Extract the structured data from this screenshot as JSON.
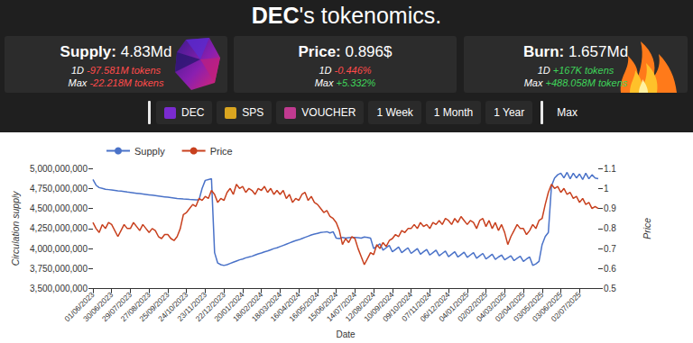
{
  "header": {
    "title_bold": "DEC",
    "title_rest": "'s tokenomics."
  },
  "cards": [
    {
      "label": "Supply:",
      "value": "4.83Md",
      "rows": [
        {
          "period": "1D",
          "change": "-97.581M",
          "unit": "tokens"
        },
        {
          "period": "Max",
          "change": "-22.218M",
          "unit": "tokens"
        }
      ]
    },
    {
      "label": "Price:",
      "value": "0.896$",
      "rows": [
        {
          "period": "1D",
          "change": "-0.446%"
        },
        {
          "period": "Max",
          "change": "+5.332%"
        }
      ]
    },
    {
      "label": "Burn:",
      "value": "1.657Md",
      "rows": [
        {
          "period": "1D",
          "change": "+167K",
          "unit": "tokens"
        },
        {
          "period": "Max",
          "change": "+488.058M",
          "unit": "tokens"
        }
      ]
    }
  ],
  "buttons": [
    "DEC",
    "SPS",
    "VOUCHER",
    "1 Week",
    "1 Month",
    "1 Year",
    "Max"
  ],
  "chart_data": {
    "type": "line",
    "x_label": "Date",
    "y_label": "Circulation supply",
    "y2_label": "Price",
    "legend": "top left",
    "grid": false,
    "categories": [
      "01/06/2023",
      null,
      null,
      null,
      null,
      null,
      "30/06/2023",
      null,
      null,
      null,
      null,
      null,
      "29/07/2023",
      null,
      null,
      null,
      null,
      null,
      "27/08/2023",
      null,
      null,
      null,
      null,
      null,
      "25/09/2023",
      null,
      null,
      null,
      null,
      null,
      "24/10/2023",
      null,
      null,
      null,
      null,
      null,
      "23/11/2023",
      null,
      null,
      null,
      null,
      null,
      "22/12/2023",
      null,
      null,
      null,
      null,
      null,
      "20/01/2024",
      null,
      null,
      null,
      null,
      null,
      "18/02/2024",
      null,
      null,
      null,
      null,
      null,
      "18/03/2024",
      null,
      null,
      null,
      null,
      null,
      "16/04/2024",
      null,
      null,
      null,
      null,
      null,
      "16/05/2024",
      null,
      null,
      null,
      null,
      null,
      "15/06/2024",
      null,
      null,
      null,
      null,
      null,
      "14/07/2024",
      null,
      null,
      null,
      null,
      null,
      "12/08/2024",
      null,
      null,
      null,
      null,
      null,
      "10/09/2024",
      null,
      null,
      null,
      null,
      null,
      "09/10/2024",
      null,
      null,
      null,
      null,
      null,
      "07/11/2024",
      null,
      null,
      null,
      null,
      null,
      "06/12/2024",
      null,
      null,
      null,
      null,
      null,
      "04/01/2025",
      null,
      null,
      null,
      null,
      null,
      "02/02/2025",
      null,
      null,
      null,
      null,
      null,
      "04/03/2025",
      null,
      null,
      null,
      null,
      null,
      "02/04/2025",
      null,
      null,
      null,
      null,
      null,
      "03/05/2025",
      null,
      null,
      null,
      null,
      null,
      "03/06/2025",
      null,
      null,
      null,
      null,
      null,
      "02/07/2025",
      null,
      null,
      null,
      null,
      null,
      null
    ],
    "series": [
      {
        "name": "Supply",
        "color": "#4a72c8",
        "values": [
          4860000000,
          4790000000,
          4760000000,
          4750000000,
          4740000000,
          4735000000,
          4730000000,
          4725000000,
          4720000000,
          4718000000,
          4712000000,
          4705000000,
          4700000000,
          4695000000,
          4690000000,
          4685000000,
          4680000000,
          4675000000,
          4670000000,
          4665000000,
          4660000000,
          4655000000,
          4650000000,
          4645000000,
          4640000000,
          4635000000,
          4630000000,
          4625000000,
          4622000000,
          4618000000,
          4615000000,
          4612000000,
          4610000000,
          4608000000,
          4606000000,
          4750000000,
          4850000000,
          4860000000,
          4870000000,
          3950000000,
          3820000000,
          3800000000,
          3790000000,
          3800000000,
          3815000000,
          3830000000,
          3845000000,
          3860000000,
          3870000000,
          3885000000,
          3895000000,
          3905000000,
          3920000000,
          3935000000,
          3945000000,
          3960000000,
          3970000000,
          3985000000,
          4000000000,
          4010000000,
          4025000000,
          4040000000,
          4055000000,
          4070000000,
          4085000000,
          4100000000,
          4110000000,
          4125000000,
          4140000000,
          4155000000,
          4170000000,
          4180000000,
          4190000000,
          4200000000,
          4205000000,
          4210000000,
          4195000000,
          4210000000,
          4130000000,
          4125000000,
          4140000000,
          4130000000,
          4135000000,
          4140000000,
          4140000000,
          4135000000,
          4130000000,
          4145000000,
          4140000000,
          4130000000,
          4000000000,
          4030000000,
          4060000000,
          3980000000,
          4010000000,
          4040000000,
          3960000000,
          3990000000,
          4020000000,
          3950000000,
          3980000000,
          4010000000,
          3940000000,
          3970000000,
          4000000000,
          3930000000,
          3960000000,
          3990000000,
          3920000000,
          3950000000,
          3980000000,
          3910000000,
          3940000000,
          3970000000,
          3900000000,
          3930000000,
          3960000000,
          3895000000,
          3925000000,
          3955000000,
          3890000000,
          3920000000,
          3950000000,
          3880000000,
          3910000000,
          3940000000,
          3870000000,
          3900000000,
          3930000000,
          3865000000,
          3895000000,
          3920000000,
          3860000000,
          3885000000,
          3910000000,
          3850000000,
          3880000000,
          3905000000,
          3840000000,
          3870000000,
          3895000000,
          3790000000,
          3810000000,
          3840000000,
          4050000000,
          4150000000,
          4200000000,
          4780000000,
          4880000000,
          4920000000,
          4940000000,
          4880000000,
          4950000000,
          4870000000,
          4940000000,
          4880000000,
          4930000000,
          4860000000,
          4940000000,
          4870000000,
          4920000000,
          4880000000,
          4870000000
        ]
      },
      {
        "name": "Price",
        "color": "#c8401e",
        "axis": "y2",
        "values": [
          0.83,
          0.8,
          0.78,
          0.82,
          0.8,
          0.83,
          0.82,
          0.79,
          0.76,
          0.79,
          0.82,
          0.8,
          0.8,
          0.83,
          0.81,
          0.79,
          0.82,
          0.8,
          0.78,
          0.8,
          0.79,
          0.76,
          0.75,
          0.77,
          0.77,
          0.75,
          0.74,
          0.76,
          0.8,
          0.87,
          0.88,
          0.9,
          0.92,
          0.91,
          0.95,
          0.94,
          0.96,
          0.95,
          0.99,
          0.97,
          0.93,
          0.95,
          0.94,
          0.98,
          1.0,
          0.97,
          1.02,
          1.0,
          1.01,
          0.98,
          1.0,
          0.99,
          0.97,
          1.0,
          0.99,
          1.01,
          0.98,
          1.0,
          0.97,
          0.99,
          0.97,
          0.99,
          0.95,
          0.97,
          0.93,
          0.95,
          0.94,
          0.97,
          0.98,
          0.94,
          0.96,
          0.93,
          0.92,
          0.9,
          0.88,
          0.89,
          0.86,
          0.85,
          0.83,
          0.79,
          0.72,
          0.75,
          0.73,
          0.76,
          0.75,
          0.7,
          0.66,
          0.62,
          0.65,
          0.68,
          0.67,
          0.72,
          0.7,
          0.73,
          0.71,
          0.74,
          0.75,
          0.77,
          0.76,
          0.79,
          0.78,
          0.8,
          0.8,
          0.82,
          0.8,
          0.83,
          0.81,
          0.82,
          0.8,
          0.83,
          0.82,
          0.84,
          0.82,
          0.85,
          0.84,
          0.82,
          0.85,
          0.83,
          0.86,
          0.84,
          0.82,
          0.84,
          0.83,
          0.8,
          0.84,
          0.85,
          0.81,
          0.84,
          0.8,
          0.83,
          0.79,
          0.82,
          0.78,
          0.72,
          0.76,
          0.79,
          0.82,
          0.8,
          0.8,
          0.77,
          0.79,
          0.82,
          0.8,
          0.84,
          0.85,
          0.92,
          0.98,
          1.02,
          1.0,
          1.01,
          0.98,
          1.0,
          0.97,
          0.98,
          0.95,
          0.96,
          0.93,
          0.95,
          0.92,
          0.93,
          0.9,
          0.91,
          0.9
        ]
      }
    ],
    "ylim": [
      3500000000,
      5000000000
    ],
    "yticks": [
      {
        "value": 3500000000,
        "label": "3,500,000,000"
      },
      {
        "value": 3750000000,
        "label": "3,750,000,000"
      },
      {
        "value": 4000000000,
        "label": "4,000,000,000"
      },
      {
        "value": 4250000000,
        "label": "4,250,000,000"
      },
      {
        "value": 4500000000,
        "label": "4,500,000,000"
      },
      {
        "value": 4750000000,
        "label": "4,750,000,000"
      },
      {
        "value": 5000000000,
        "label": "5,000,000,000"
      }
    ],
    "y2lim": [
      0.5,
      1.1
    ],
    "y2ticks": [
      0.5,
      0.6,
      0.7,
      0.8,
      0.9,
      1,
      1.1
    ]
  }
}
